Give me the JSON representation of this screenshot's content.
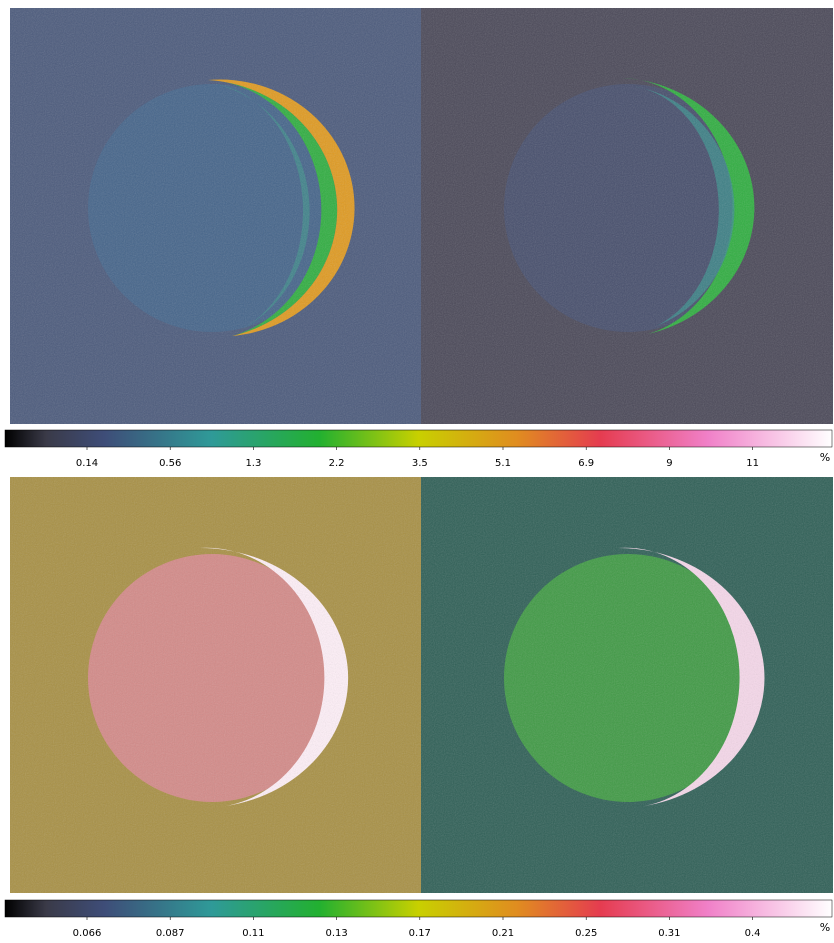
{
  "colorbars": [
    {
      "ticks": [
        "0.14",
        "0.56",
        "1.3",
        "2.2",
        "3.5",
        "5.1",
        "6.9",
        "9",
        "11"
      ],
      "unit": "%"
    },
    {
      "ticks": [
        "0.066",
        "0.087",
        "0.11",
        "0.13",
        "0.17",
        "0.21",
        "0.25",
        "0.31",
        "0.4"
      ],
      "unit": "%"
    }
  ]
}
